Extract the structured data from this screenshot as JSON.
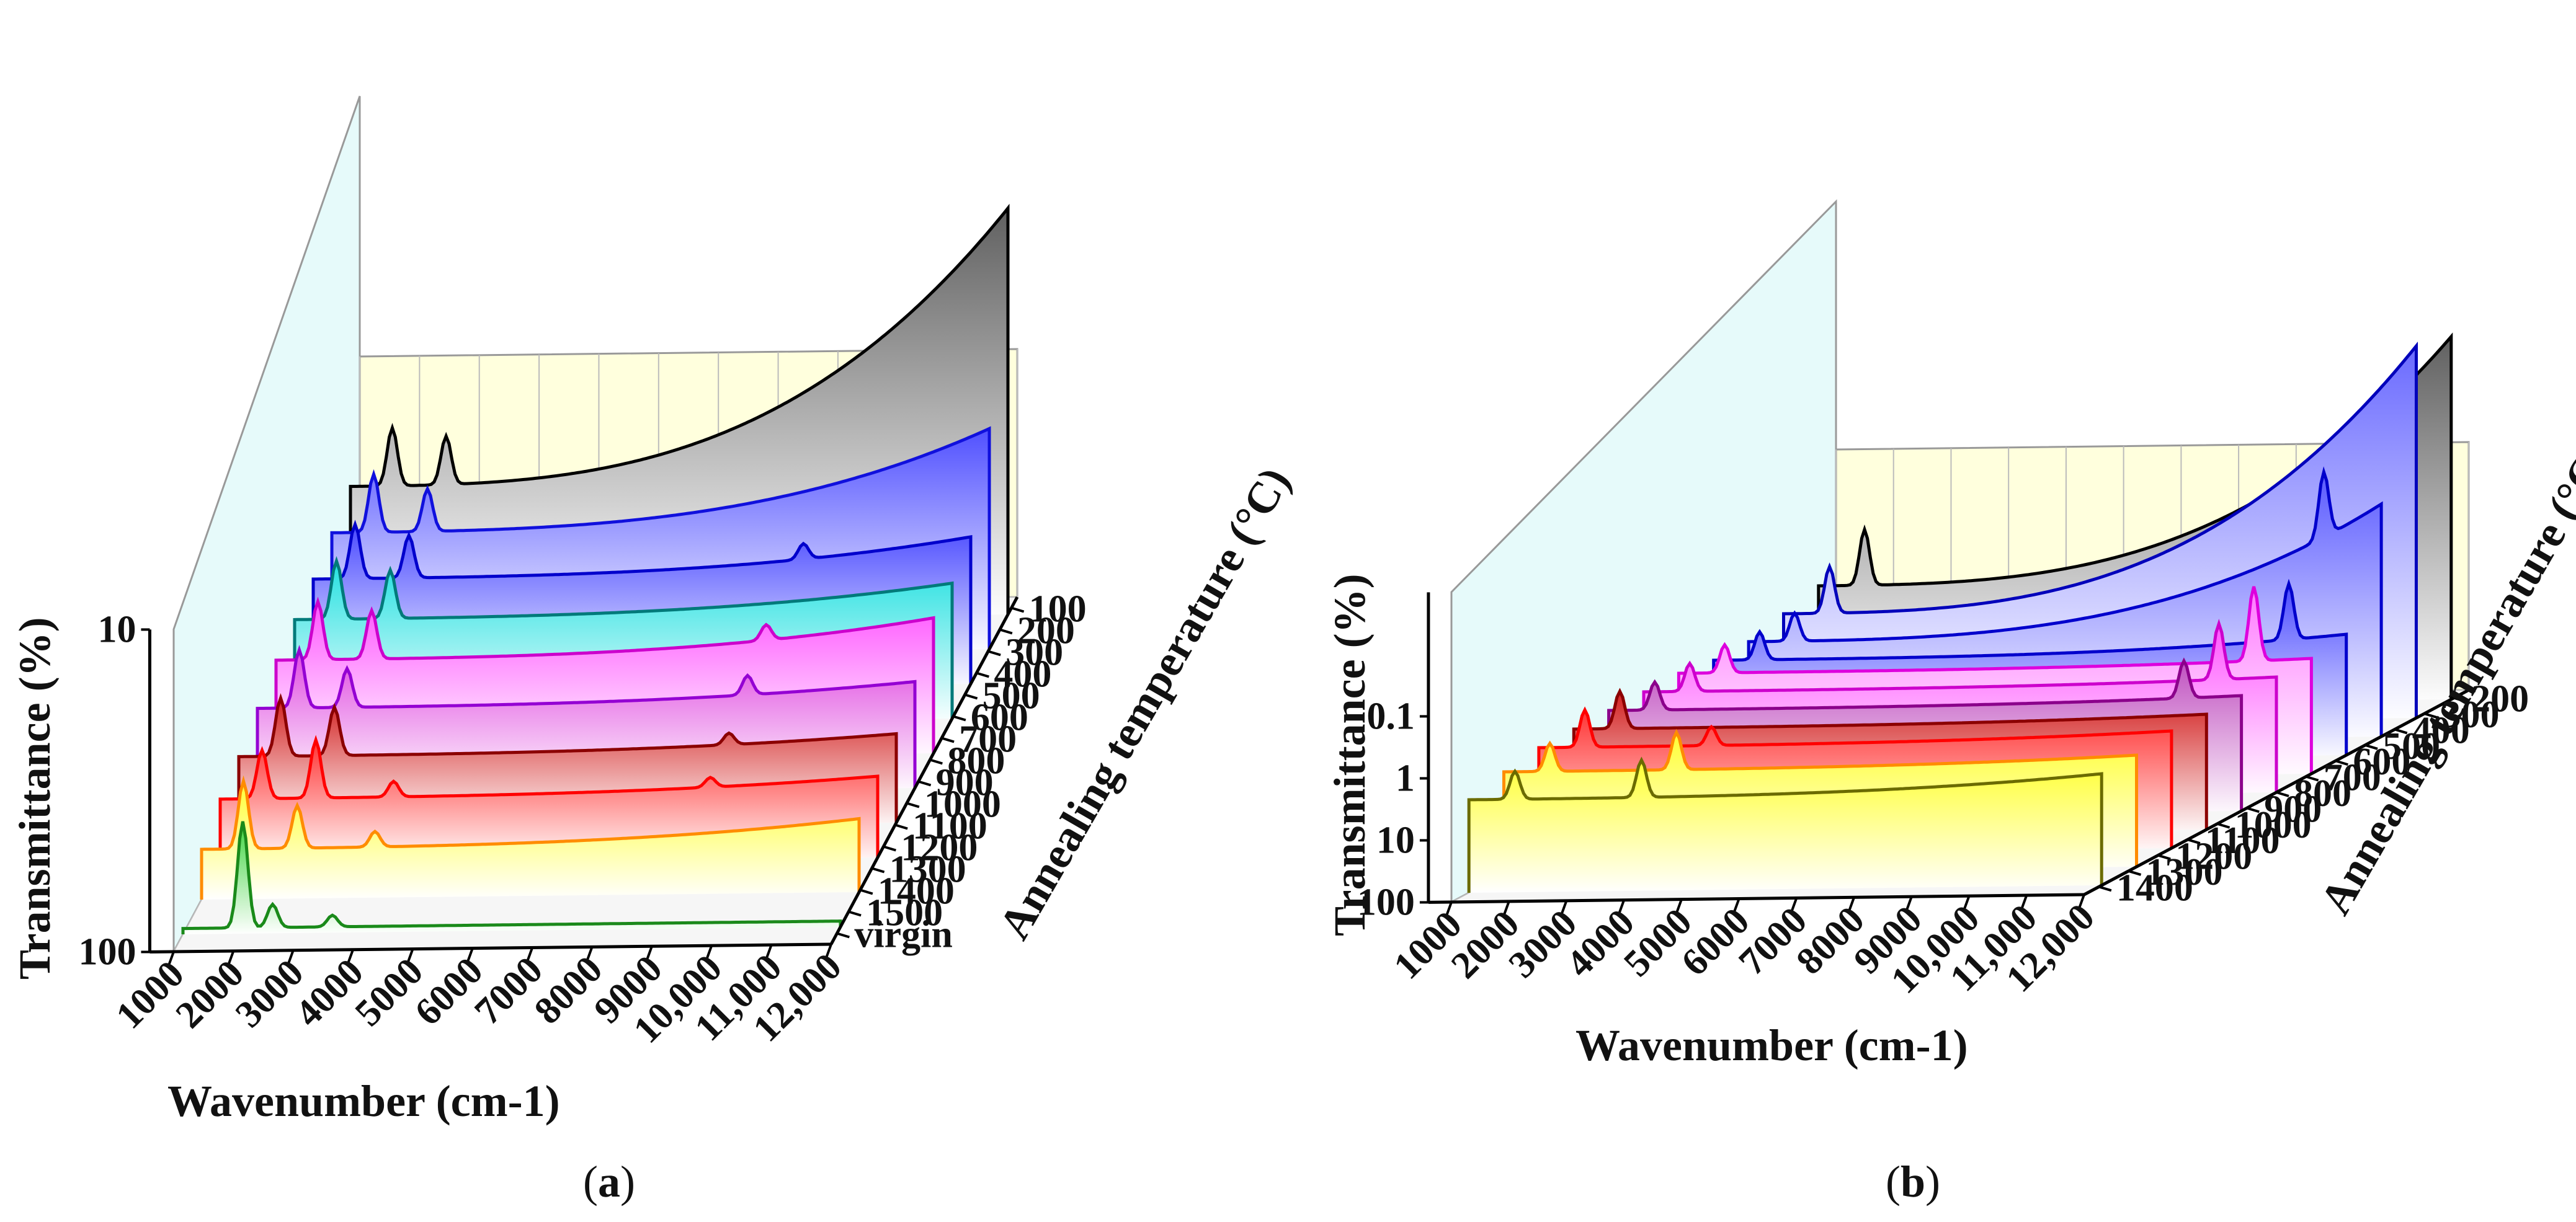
{
  "chart_data": [
    {
      "type": "3d-waterfall-line",
      "panel_label": "a",
      "xlabel": "Wavenumber (cm-1)",
      "ylabel": "Transmittance (%)",
      "zlabel": "Annealing temperature (°C)",
      "x_ticks": [
        "1000",
        "2000",
        "3000",
        "4000",
        "5000",
        "6000",
        "7000",
        "8000",
        "9000",
        "10,000",
        "11,000",
        "12,000"
      ],
      "y_ticks": [
        "10",
        "100"
      ],
      "z_ticks": [
        "100",
        "200",
        "300",
        "400",
        "500",
        "600",
        "700",
        "800",
        "900",
        "1000",
        "1100",
        "1200",
        "1300",
        "1400",
        "1500",
        "virgin"
      ],
      "series": [
        {
          "name": "virgin",
          "color": "#1a8a1a",
          "fill": "#3fd53f",
          "level": 0.97,
          "peaks": [
            [
              2000,
              0.55
            ],
            [
              2500,
              0.12
            ],
            [
              3500,
              0.06
            ]
          ],
          "rise": 0.0
        },
        {
          "name": "1500",
          "color": "#ff8c00",
          "fill": "#ffff33",
          "level": 0.74,
          "peaks": [
            [
              1700,
              0.35
            ],
            [
              2600,
              0.22
            ],
            [
              3900,
              0.08
            ]
          ],
          "rise": 0.12
        },
        {
          "name": "1400",
          "color": "#ff0000",
          "fill": "#ff3333",
          "level": 0.66,
          "peaks": [
            [
              1700,
              0.25
            ],
            [
              2600,
              0.3
            ],
            [
              3900,
              0.08
            ],
            [
              9200,
              0.05
            ]
          ],
          "rise": 0.08
        },
        {
          "name": "1300",
          "color": "#8b0000",
          "fill": "#d22020",
          "level": 0.62,
          "peaks": [
            [
              1700,
              0.3
            ],
            [
              2600,
              0.25
            ],
            [
              9200,
              0.06
            ]
          ],
          "rise": 0.08
        },
        {
          "name": "1200",
          "color": "#9400d3",
          "fill": "#e04ae0",
          "level": 0.55,
          "peaks": [
            [
              1700,
              0.3
            ],
            [
              2500,
              0.2
            ],
            [
              9200,
              0.1
            ]
          ],
          "rise": 0.1
        },
        {
          "name": "1100",
          "color": "#cc00cc",
          "fill": "#ff55ff",
          "level": 0.48,
          "peaks": [
            [
              1700,
              0.3
            ],
            [
              2600,
              0.25
            ],
            [
              9200,
              0.08
            ]
          ],
          "rise": 0.18
        },
        {
          "name": "1000",
          "color": "#007a7a",
          "fill": "#22e0e0",
          "level": 0.45,
          "peaks": [
            [
              1700,
              0.3
            ],
            [
              2600,
              0.25
            ]
          ],
          "rise": 0.15
        },
        {
          "name": "900",
          "color": "#0000cc",
          "fill": "#4a4aff",
          "level": 0.42,
          "peaks": [
            [
              1700,
              0.28
            ],
            [
              2600,
              0.22
            ],
            [
              9200,
              0.08
            ]
          ],
          "rise": 0.18
        },
        {
          "name": "800",
          "color": "#1010dd",
          "fill": "#5050ff",
          "level": 0.36,
          "peaks": [
            [
              1700,
              0.3
            ],
            [
              2600,
              0.22
            ]
          ],
          "rise": 0.5
        },
        {
          "name": "100",
          "color": "#000000",
          "fill": "#606060",
          "level": 0.3,
          "peaks": [
            [
              1700,
              0.3
            ],
            [
              2600,
              0.25
            ]
          ],
          "rise": 1.4
        }
      ]
    },
    {
      "type": "3d-waterfall-line",
      "panel_label": "b",
      "xlabel": "Wavenumber (cm-1)",
      "ylabel": "Transmittance (%)",
      "zlabel": "Annealing temperature (°C)",
      "x_ticks": [
        "1000",
        "2000",
        "3000",
        "4000",
        "5000",
        "6000",
        "7000",
        "8000",
        "9000",
        "10,000",
        "11,000",
        "12,000"
      ],
      "y_ticks": [
        "0.1",
        "1",
        "10",
        "100"
      ],
      "z_ticks": [
        "200",
        "300",
        "400",
        "500",
        "600",
        "700",
        "800",
        "900",
        "1000",
        "1100",
        "1200",
        "1300",
        "1400"
      ],
      "series": [
        {
          "name": "1400",
          "color": "#6b6b00",
          "fill": "#ffff33",
          "level": 0.5,
          "peaks": [
            [
              1800,
              0.15
            ],
            [
              4000,
              0.2
            ]
          ],
          "rise": 0.1
        },
        {
          "name": "1300",
          "color": "#ff8c00",
          "fill": "#ffff33",
          "level": 0.45,
          "peaks": [
            [
              1800,
              0.15
            ],
            [
              4000,
              0.2
            ]
          ],
          "rise": 0.05
        },
        {
          "name": "1200",
          "color": "#ff0000",
          "fill": "#ff3333",
          "level": 0.42,
          "peaks": [
            [
              1800,
              0.2
            ],
            [
              4000,
              0.1
            ]
          ],
          "rise": 0.05
        },
        {
          "name": "1100",
          "color": "#8b0000",
          "fill": "#d22020",
          "level": 0.42,
          "peaks": [
            [
              1800,
              0.2
            ]
          ],
          "rise": 0.04
        },
        {
          "name": "1000",
          "color": "#8b008b",
          "fill": "#c050c0",
          "level": 0.42,
          "peaks": [
            [
              1800,
              0.15
            ],
            [
              11000,
              0.2
            ]
          ],
          "rise": 0.04
        },
        {
          "name": "900",
          "color": "#cc00cc",
          "fill": "#ff55ff",
          "level": 0.42,
          "peaks": [
            [
              1800,
              0.15
            ],
            [
              11000,
              0.3
            ]
          ],
          "rise": 0.04
        },
        {
          "name": "800",
          "color": "#dd00dd",
          "fill": "#ff77ff",
          "level": 0.42,
          "peaks": [
            [
              1800,
              0.15
            ],
            [
              11000,
              0.4
            ]
          ],
          "rise": 0.04
        },
        {
          "name": "600",
          "color": "#0000cc",
          "fill": "#4a4aff",
          "level": 0.45,
          "peaks": [
            [
              1800,
              0.15
            ],
            [
              11000,
              0.3
            ]
          ],
          "rise": 0.1
        },
        {
          "name": "400",
          "color": "#0000cc",
          "fill": "#5a5aff",
          "level": 0.45,
          "peaks": [
            [
              1800,
              0.15
            ],
            [
              11000,
              0.35
            ]
          ],
          "rise": 0.7
        },
        {
          "name": "300",
          "color": "#0000bb",
          "fill": "#6a6aff",
          "level": 0.4,
          "peaks": [
            [
              1800,
              0.25
            ]
          ],
          "rise": 1.4
        },
        {
          "name": "200",
          "color": "#000000",
          "fill": "#606060",
          "level": 0.35,
          "peaks": [
            [
              1800,
              0.3
            ]
          ],
          "rise": 1.3
        }
      ]
    }
  ]
}
